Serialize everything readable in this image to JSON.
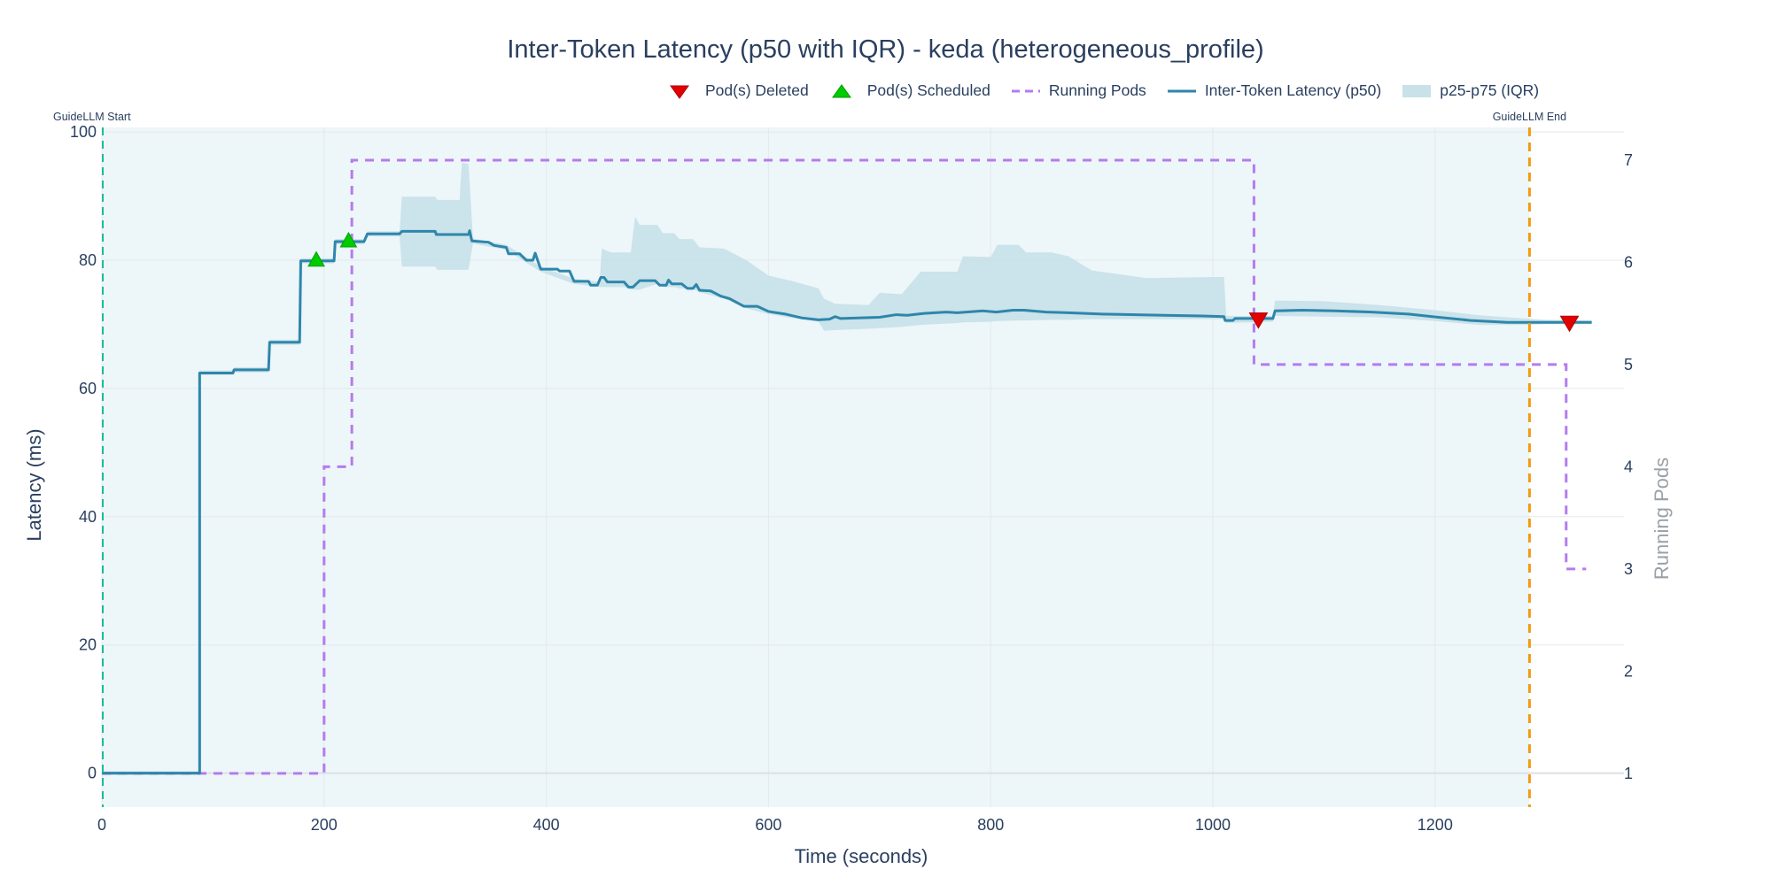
{
  "chart_data": {
    "type": "line",
    "title": "Inter-Token Latency (p50 with IQR) - keda (heterogeneous_profile)",
    "xlabel": "Time (seconds)",
    "ylabel": "Latency (ms)",
    "y2label": "Running Pods",
    "xlim": [
      0,
      1370
    ],
    "ylim": [
      -5.3,
      100.7
    ],
    "y2lim": [
      0.67,
      7.32
    ],
    "xticks": [
      "0",
      "200",
      "400",
      "600",
      "800",
      "1000",
      "1200"
    ],
    "yticks": [
      "0",
      "20",
      "40",
      "60",
      "80",
      "100"
    ],
    "y2ticks": [
      "1",
      "2",
      "3",
      "4",
      "5",
      "6",
      "7"
    ],
    "grid": true,
    "legend_position": "top-right",
    "legend": [
      "Pod(s) Deleted",
      "Pod(s) Scheduled",
      "Running Pods",
      "Inter-Token Latency (p50)",
      "p25-p75 (IQR)"
    ],
    "colors": {
      "p50": "#2e86ab",
      "iqr": "#c9e1e9",
      "pods": "#b57bee",
      "deleted": "#e00000",
      "scheduled": "#00cc00",
      "start_line": "#1abc9c",
      "end_line": "#f39c12",
      "window_bg": "#edf6f9"
    },
    "annotations": {
      "start": {
        "label": "GuideLLM Start",
        "x": 0
      },
      "end": {
        "label": "GuideLLM End",
        "x": 1285
      }
    },
    "series": [
      {
        "name": "Inter-Token Latency (p50)",
        "axis": "y",
        "points": [
          [
            0,
            0
          ],
          [
            88,
            0
          ],
          [
            88,
            62.4
          ],
          [
            118,
            62.4
          ],
          [
            119,
            62.9
          ],
          [
            150,
            62.9
          ],
          [
            151,
            67.2
          ],
          [
            178,
            67.2
          ],
          [
            179,
            79.9
          ],
          [
            209,
            79.9
          ],
          [
            210,
            82.9
          ],
          [
            236,
            82.9
          ],
          [
            239,
            84.1
          ],
          [
            268,
            84.1
          ],
          [
            270,
            84.5
          ],
          [
            300,
            84.5
          ],
          [
            301,
            84
          ],
          [
            330,
            84
          ],
          [
            331,
            84.6
          ],
          [
            333,
            83
          ],
          [
            348,
            82.8
          ],
          [
            353,
            82.3
          ],
          [
            364,
            82
          ],
          [
            366,
            81
          ],
          [
            376,
            81
          ],
          [
            382,
            80
          ],
          [
            388,
            80
          ],
          [
            390,
            81.1
          ],
          [
            395,
            78.6
          ],
          [
            410,
            78.6
          ],
          [
            412,
            78.3
          ],
          [
            421,
            78.3
          ],
          [
            425,
            76.7
          ],
          [
            438,
            76.7
          ],
          [
            440,
            76.1
          ],
          [
            446,
            76.1
          ],
          [
            449,
            77.3
          ],
          [
            452,
            77.3
          ],
          [
            455,
            76.6
          ],
          [
            470,
            76.6
          ],
          [
            474,
            75.8
          ],
          [
            478,
            75.8
          ],
          [
            484,
            76.8
          ],
          [
            498,
            76.8
          ],
          [
            502,
            76.1
          ],
          [
            508,
            76.1
          ],
          [
            510,
            76.9
          ],
          [
            513,
            76.3
          ],
          [
            522,
            76.3
          ],
          [
            527,
            75.6
          ],
          [
            532,
            75.6
          ],
          [
            535,
            76.2
          ],
          [
            538,
            75.3
          ],
          [
            548,
            75.2
          ],
          [
            557,
            74.4
          ],
          [
            565,
            74
          ],
          [
            578,
            72.8
          ],
          [
            590,
            72.8
          ],
          [
            600,
            72
          ],
          [
            615,
            71.6
          ],
          [
            630,
            71
          ],
          [
            645,
            70.7
          ],
          [
            655,
            70.8
          ],
          [
            660,
            71.2
          ],
          [
            665,
            70.9
          ],
          [
            700,
            71.1
          ],
          [
            715,
            71.5
          ],
          [
            725,
            71.4
          ],
          [
            740,
            71.7
          ],
          [
            760,
            71.9
          ],
          [
            770,
            71.8
          ],
          [
            793,
            72.1
          ],
          [
            805,
            71.9
          ],
          [
            820,
            72.2
          ],
          [
            830,
            72.2
          ],
          [
            850,
            71.9
          ],
          [
            870,
            71.8
          ],
          [
            900,
            71.6
          ],
          [
            956,
            71.4
          ],
          [
            990,
            71.3
          ],
          [
            1010,
            71.2
          ],
          [
            1011,
            70.6
          ],
          [
            1018,
            70.6
          ],
          [
            1020,
            70.9
          ],
          [
            1054,
            70.9
          ],
          [
            1056,
            72.1
          ],
          [
            1080,
            72.2
          ],
          [
            1110,
            72.1
          ],
          [
            1143,
            71.9
          ],
          [
            1176,
            71.6
          ],
          [
            1203,
            71.1
          ],
          [
            1232,
            70.6
          ],
          [
            1265,
            70.3
          ],
          [
            1341,
            70.3
          ]
        ]
      },
      {
        "name": "p25-p75 (IQR)",
        "axis": "y",
        "points": [
          [
            0,
            -0.3,
            0.3
          ],
          [
            88,
            -0.3,
            0.3
          ],
          [
            88,
            62.1,
            62.8
          ],
          [
            118,
            62.1,
            62.8
          ],
          [
            119,
            62.5,
            63.3
          ],
          [
            150,
            62.5,
            63.3
          ],
          [
            151,
            66.8,
            67.6
          ],
          [
            178,
            66.8,
            67.6
          ],
          [
            179,
            79.5,
            80.3
          ],
          [
            209,
            79.5,
            80.3
          ],
          [
            210,
            82.5,
            83.3
          ],
          [
            236,
            82.5,
            83.3
          ],
          [
            239,
            83.7,
            84.5
          ],
          [
            268,
            83.7,
            84.5
          ],
          [
            270,
            79,
            89.9
          ],
          [
            300,
            79,
            89.9
          ],
          [
            302,
            78.5,
            89.4
          ],
          [
            322,
            78.5,
            89.4
          ],
          [
            324,
            78.5,
            95.2
          ],
          [
            330,
            78.5,
            95
          ],
          [
            334,
            82.6,
            83.4
          ],
          [
            364,
            81.6,
            82.4
          ],
          [
            382,
            79.6,
            80.4
          ],
          [
            395,
            78.2,
            79
          ],
          [
            425,
            76.3,
            77.1
          ],
          [
            448,
            75.8,
            76.6
          ],
          [
            450,
            75.8,
            81.8
          ],
          [
            458,
            75.8,
            81.2
          ],
          [
            470,
            75.8,
            81.2
          ],
          [
            476,
            75.4,
            81.2
          ],
          [
            480,
            75.4,
            86.8
          ],
          [
            484,
            75.4,
            85.5
          ],
          [
            500,
            76.3,
            85.5
          ],
          [
            505,
            75.8,
            84.2
          ],
          [
            515,
            75.8,
            84.2
          ],
          [
            520,
            75.6,
            83.3
          ],
          [
            532,
            75.5,
            83.3
          ],
          [
            538,
            75,
            82
          ],
          [
            560,
            74,
            81.8
          ],
          [
            580,
            72.5,
            80
          ],
          [
            600,
            71.6,
            77.6
          ],
          [
            620,
            71,
            76.8
          ],
          [
            645,
            70.4,
            75.6
          ],
          [
            650,
            69,
            74
          ],
          [
            660,
            69.1,
            73.2
          ],
          [
            690,
            69.3,
            73
          ],
          [
            700,
            69.4,
            74.9
          ],
          [
            720,
            69.6,
            74.7
          ],
          [
            737,
            69.9,
            78.2
          ],
          [
            770,
            70.2,
            78.2
          ],
          [
            775,
            70.3,
            80.6
          ],
          [
            800,
            70.4,
            80.5
          ],
          [
            806,
            70.5,
            82.4
          ],
          [
            825,
            70.6,
            82.4
          ],
          [
            832,
            70.6,
            81.2
          ],
          [
            855,
            70.7,
            81.2
          ],
          [
            870,
            70.7,
            80.6
          ],
          [
            891,
            70.8,
            78.4
          ],
          [
            940,
            70.8,
            77.2
          ],
          [
            1010,
            70.8,
            77.4
          ],
          [
            1012,
            70.2,
            71.3
          ],
          [
            1054,
            70.4,
            71.3
          ],
          [
            1056,
            71.3,
            73.7
          ],
          [
            1100,
            71.2,
            73.6
          ],
          [
            1150,
            71.1,
            73
          ],
          [
            1200,
            70.5,
            72.2
          ],
          [
            1240,
            69.9,
            71.4
          ],
          [
            1280,
            69.9,
            70.9
          ],
          [
            1300,
            70,
            70.7
          ],
          [
            1341,
            70,
            70.6
          ]
        ]
      },
      {
        "name": "Running Pods",
        "axis": "y2",
        "shape": "hv",
        "points": [
          [
            0,
            1
          ],
          [
            200,
            4
          ],
          [
            225,
            7
          ],
          [
            1037,
            5
          ],
          [
            1318,
            3
          ],
          [
            1336,
            3
          ]
        ]
      },
      {
        "name": "Pod(s) Scheduled",
        "axis": "y",
        "marker": "triangle-up",
        "points": [
          [
            193,
            79.9
          ],
          [
            222,
            82.9
          ]
        ]
      },
      {
        "name": "Pod(s) Deleted",
        "axis": "y",
        "marker": "triangle-down",
        "points": [
          [
            1041,
            70.8
          ],
          [
            1321,
            70.3
          ]
        ]
      }
    ]
  }
}
